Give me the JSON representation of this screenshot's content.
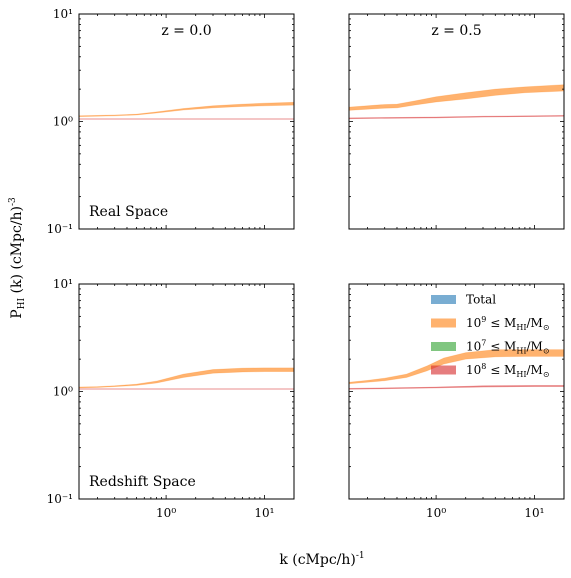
{
  "figure": {
    "ylabel": "P_HI (k) (cMpc/h)^-3",
    "xlabel": "k (cMpc/h)^-1"
  },
  "legend": {
    "location": "upper right of bottom-right panel",
    "entries": [
      {
        "label_pre": "Total",
        "label_math": "",
        "label_post": "",
        "color": "#1f77b4"
      },
      {
        "label_pre": "10",
        "label_sup": "9",
        "label_mid": "≤ M",
        "label_sub": "HI",
        "label_post": "/M",
        "label_sun": "⊙",
        "color": "#ff7f0e"
      },
      {
        "label_pre": "10",
        "label_sup": "7",
        "label_mid": "≤ M",
        "label_sub": "HI",
        "label_post": "/M",
        "label_sun": "⊙",
        "color": "#2ca02c"
      },
      {
        "label_pre": "10",
        "label_sup": "8",
        "label_mid": "≤ M",
        "label_sub": "HI",
        "label_post": "/M",
        "label_sun": "⊙",
        "color": "#d62728"
      }
    ]
  },
  "chart_data": [
    {
      "type": "area",
      "panel": "top-left",
      "title": "z = 0.0",
      "annotation": "Real Space",
      "xscale": "log",
      "yscale": "log",
      "xlim": [
        0.13,
        20
      ],
      "ylim": [
        0.1,
        10
      ],
      "yticklabels": [
        "10⁻¹",
        "10⁰",
        "10¹"
      ],
      "xticklabels": [],
      "series": [
        {
          "name": "10^9 ≤ M_HI/M_⊙",
          "color": "#ff7f0e",
          "x": [
            0.13,
            0.2,
            0.3,
            0.5,
            0.8,
            1.5,
            3,
            6,
            10,
            20
          ],
          "lower": [
            1.11,
            1.12,
            1.13,
            1.15,
            1.2,
            1.28,
            1.34,
            1.38,
            1.4,
            1.42
          ],
          "upper": [
            1.13,
            1.14,
            1.15,
            1.17,
            1.23,
            1.32,
            1.4,
            1.45,
            1.48,
            1.51
          ]
        },
        {
          "name": "10^8 ≤ M_HI/M_⊙",
          "color": "#d62728",
          "x": [
            0.13,
            0.3,
            1,
            3,
            10,
            20
          ],
          "lower": [
            1.05,
            1.05,
            1.05,
            1.05,
            1.05,
            1.05
          ],
          "upper": [
            1.06,
            1.06,
            1.06,
            1.06,
            1.06,
            1.06
          ]
        }
      ]
    },
    {
      "type": "area",
      "panel": "top-right",
      "title": "z = 0.5",
      "annotation": "",
      "xscale": "log",
      "yscale": "log",
      "xlim": [
        0.13,
        20
      ],
      "ylim": [
        0.1,
        10
      ],
      "yticklabels": [],
      "xticklabels": [],
      "series": [
        {
          "name": "10^9 ≤ M_HI/M_⊙",
          "color": "#ff7f0e",
          "x": [
            0.13,
            0.2,
            0.3,
            0.4,
            0.6,
            1,
            2,
            4,
            8,
            20
          ],
          "lower": [
            1.27,
            1.3,
            1.33,
            1.34,
            1.42,
            1.52,
            1.62,
            1.75,
            1.85,
            1.92
          ],
          "upper": [
            1.36,
            1.4,
            1.44,
            1.45,
            1.55,
            1.7,
            1.85,
            2.0,
            2.1,
            2.2
          ]
        },
        {
          "name": "10^8 ≤ M_HI/M_⊙",
          "color": "#d62728",
          "x": [
            0.13,
            0.3,
            1,
            3,
            10,
            20
          ],
          "lower": [
            1.06,
            1.07,
            1.08,
            1.1,
            1.11,
            1.12
          ],
          "upper": [
            1.08,
            1.09,
            1.1,
            1.12,
            1.13,
            1.14
          ]
        }
      ]
    },
    {
      "type": "area",
      "panel": "bottom-left",
      "title": "",
      "annotation": "Redshift Space",
      "xscale": "log",
      "yscale": "log",
      "xlim": [
        0.13,
        20
      ],
      "ylim": [
        0.1,
        10
      ],
      "yticklabels": [
        "10⁻¹",
        "10⁰",
        "10¹"
      ],
      "xticklabels": [
        "10⁰",
        "10¹"
      ],
      "series": [
        {
          "name": "10^9 ≤ M_HI/M_⊙",
          "color": "#ff7f0e",
          "x": [
            0.13,
            0.2,
            0.3,
            0.5,
            0.8,
            1.5,
            3,
            6,
            10,
            20
          ],
          "lower": [
            1.08,
            1.09,
            1.11,
            1.14,
            1.2,
            1.35,
            1.48,
            1.52,
            1.53,
            1.53
          ],
          "upper": [
            1.1,
            1.11,
            1.13,
            1.17,
            1.25,
            1.45,
            1.6,
            1.65,
            1.66,
            1.66
          ]
        },
        {
          "name": "10^8 ≤ M_HI/M_⊙",
          "color": "#d62728",
          "x": [
            0.13,
            0.3,
            1,
            3,
            10,
            20
          ],
          "lower": [
            1.05,
            1.05,
            1.05,
            1.05,
            1.05,
            1.05
          ],
          "upper": [
            1.06,
            1.06,
            1.06,
            1.06,
            1.06,
            1.06
          ]
        }
      ]
    },
    {
      "type": "area",
      "panel": "bottom-right",
      "title": "",
      "annotation": "",
      "xscale": "log",
      "yscale": "log",
      "xlim": [
        0.13,
        20
      ],
      "ylim": [
        0.1,
        10
      ],
      "yticklabels": [],
      "xticklabels": [
        "10⁰",
        "10¹"
      ],
      "series": [
        {
          "name": "10^9 ≤ M_HI/M_⊙",
          "color": "#ff7f0e",
          "x": [
            0.13,
            0.2,
            0.3,
            0.5,
            0.8,
            1.2,
            2,
            4,
            8,
            20
          ],
          "lower": [
            1.18,
            1.22,
            1.26,
            1.35,
            1.55,
            1.8,
            2.0,
            2.1,
            2.12,
            2.12
          ],
          "upper": [
            1.22,
            1.27,
            1.33,
            1.45,
            1.72,
            2.05,
            2.3,
            2.45,
            2.45,
            2.45
          ]
        },
        {
          "name": "10^8 ≤ M_HI/M_⊙",
          "color": "#d62728",
          "x": [
            0.13,
            0.3,
            1,
            3,
            10,
            20
          ],
          "lower": [
            1.05,
            1.06,
            1.08,
            1.1,
            1.11,
            1.11
          ],
          "upper": [
            1.07,
            1.08,
            1.1,
            1.13,
            1.14,
            1.14
          ]
        }
      ]
    }
  ]
}
